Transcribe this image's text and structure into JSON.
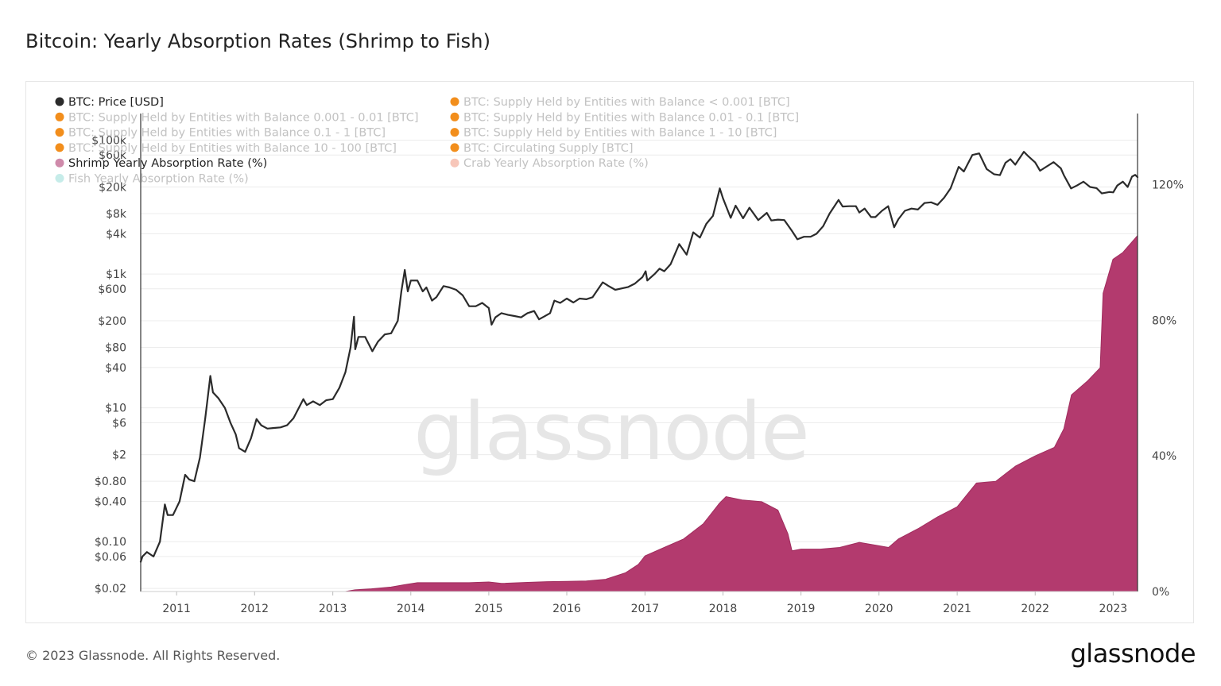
{
  "title": "Bitcoin: Yearly Absorption Rates (Shrimp to Fish)",
  "footer": {
    "copyright": "© 2023 Glassnode. All Rights Reserved.",
    "logo": "glassnode"
  },
  "watermark": "glassnode",
  "colors": {
    "price": "#2b2b2b",
    "shrimp": "#b33a6e",
    "supply": "#f28e1c",
    "crab": "#f7c6b9",
    "fish": "#c6ece9",
    "grid": "#ececec",
    "watermark": "#e6e6e6"
  },
  "legend": [
    {
      "label": "BTC: Price [USD]",
      "color": "#2b2b2b",
      "active": true
    },
    {
      "label": "BTC: Supply Held by Entities with Balance < 0.001 [BTC]",
      "color": "#f28e1c",
      "active": false
    },
    {
      "label": "BTC: Supply Held by Entities with Balance 0.001 - 0.01 [BTC]",
      "color": "#f28e1c",
      "active": false
    },
    {
      "label": "BTC: Supply Held by Entities with Balance 0.01 - 0.1 [BTC]",
      "color": "#f28e1c",
      "active": false
    },
    {
      "label": "BTC: Supply Held by Entities with Balance 0.1 - 1 [BTC]",
      "color": "#f28e1c",
      "active": false
    },
    {
      "label": "BTC: Supply Held by Entities with Balance 1 - 10 [BTC]",
      "color": "#f28e1c",
      "active": false
    },
    {
      "label": "BTC: Supply Held by Entities with Balance 10 - 100 [BTC]",
      "color": "#f28e1c",
      "active": false
    },
    {
      "label": "BTC: Circulating Supply [BTC]",
      "color": "#f28e1c",
      "active": false
    },
    {
      "label": "Shrimp Yearly Absorption Rate (%)",
      "color": "#cf8aaa",
      "active": true
    },
    {
      "label": "Crab Yearly Absorption Rate (%)",
      "color": "#f7c6b9",
      "active": false
    },
    {
      "label": "Fish Yearly Absorption Rate (%)",
      "color": "#c6ece9",
      "active": false
    }
  ],
  "chart_data": {
    "type": "line",
    "title": "Bitcoin: Yearly Absorption Rates (Shrimp to Fish)",
    "x_range": [
      "2010-07-17",
      "2023-04-25"
    ],
    "x_ticks": [
      "2011",
      "2012",
      "2013",
      "2014",
      "2015",
      "2016",
      "2017",
      "2018",
      "2019",
      "2020",
      "2021",
      "2022",
      "2023"
    ],
    "left_axis": {
      "scale": "log",
      "unit": "USD",
      "range": [
        0.018,
        250000
      ],
      "ticks": [
        {
          "label": "$100k",
          "value": 100000
        },
        {
          "label": "$60k",
          "value": 60000
        },
        {
          "label": "$20k",
          "value": 20000
        },
        {
          "label": "$8k",
          "value": 8000
        },
        {
          "label": "$4k",
          "value": 4000
        },
        {
          "label": "$1k",
          "value": 1000
        },
        {
          "label": "$600",
          "value": 600
        },
        {
          "label": "$200",
          "value": 200
        },
        {
          "label": "$80",
          "value": 80
        },
        {
          "label": "$40",
          "value": 40
        },
        {
          "label": "$10",
          "value": 10
        },
        {
          "label": "$6",
          "value": 6
        },
        {
          "label": "$2",
          "value": 2
        },
        {
          "label": "$0.80",
          "value": 0.8
        },
        {
          "label": "$0.40",
          "value": 0.4
        },
        {
          "label": "$0.10",
          "value": 0.1
        },
        {
          "label": "$0.06",
          "value": 0.06
        },
        {
          "label": "$0.02",
          "value": 0.02
        }
      ]
    },
    "right_axis": {
      "scale": "linear",
      "unit": "%",
      "range": [
        0,
        141
      ],
      "ticks": [
        {
          "label": "0%",
          "value": 0
        },
        {
          "label": "40%",
          "value": 40
        },
        {
          "label": "80%",
          "value": 80
        },
        {
          "label": "120%",
          "value": 120
        }
      ]
    },
    "grid": true,
    "legend_position": "top-left",
    "series": [
      {
        "name": "BTC: Price [USD]",
        "type": "line",
        "axis": "left",
        "color": "#2b2b2b",
        "points": [
          [
            "2010-07-17",
            0.05
          ],
          [
            "2010-07-25",
            0.06
          ],
          [
            "2010-08-15",
            0.07
          ],
          [
            "2010-09-15",
            0.06
          ],
          [
            "2010-10-15",
            0.1
          ],
          [
            "2010-11-07",
            0.36
          ],
          [
            "2010-11-20",
            0.25
          ],
          [
            "2010-12-15",
            0.25
          ],
          [
            "2011-01-15",
            0.4
          ],
          [
            "2011-02-10",
            1.0
          ],
          [
            "2011-03-01",
            0.85
          ],
          [
            "2011-03-25",
            0.8
          ],
          [
            "2011-04-20",
            1.8
          ],
          [
            "2011-05-15",
            7
          ],
          [
            "2011-06-08",
            30
          ],
          [
            "2011-06-20",
            17
          ],
          [
            "2011-07-15",
            14
          ],
          [
            "2011-08-15",
            10
          ],
          [
            "2011-09-10",
            6
          ],
          [
            "2011-10-05",
            4
          ],
          [
            "2011-10-20",
            2.5
          ],
          [
            "2011-11-18",
            2.2
          ],
          [
            "2011-12-15",
            3.5
          ],
          [
            "2012-01-10",
            6.8
          ],
          [
            "2012-02-01",
            5.5
          ],
          [
            "2012-03-01",
            4.9
          ],
          [
            "2012-04-01",
            5.0
          ],
          [
            "2012-05-01",
            5.1
          ],
          [
            "2012-06-01",
            5.5
          ],
          [
            "2012-07-01",
            7.0
          ],
          [
            "2012-08-16",
            13.5
          ],
          [
            "2012-09-01",
            11
          ],
          [
            "2012-10-01",
            12.5
          ],
          [
            "2012-11-01",
            11
          ],
          [
            "2012-12-01",
            13
          ],
          [
            "2013-01-01",
            13.5
          ],
          [
            "2013-02-01",
            20
          ],
          [
            "2013-03-01",
            34
          ],
          [
            "2013-03-25",
            80
          ],
          [
            "2013-04-10",
            230
          ],
          [
            "2013-04-16",
            75
          ],
          [
            "2013-05-01",
            115
          ],
          [
            "2013-06-01",
            115
          ],
          [
            "2013-07-05",
            70
          ],
          [
            "2013-08-01",
            98
          ],
          [
            "2013-09-01",
            125
          ],
          [
            "2013-10-01",
            130
          ],
          [
            "2013-11-01",
            200
          ],
          [
            "2013-11-18",
            550
          ],
          [
            "2013-12-04",
            1150
          ],
          [
            "2013-12-18",
            550
          ],
          [
            "2014-01-01",
            800
          ],
          [
            "2014-02-01",
            800
          ],
          [
            "2014-02-26",
            550
          ],
          [
            "2014-03-15",
            630
          ],
          [
            "2014-04-10",
            400
          ],
          [
            "2014-05-01",
            450
          ],
          [
            "2014-06-03",
            660
          ],
          [
            "2014-07-01",
            630
          ],
          [
            "2014-08-01",
            580
          ],
          [
            "2014-09-01",
            480
          ],
          [
            "2014-10-01",
            330
          ],
          [
            "2014-11-01",
            330
          ],
          [
            "2014-12-01",
            370
          ],
          [
            "2015-01-01",
            310
          ],
          [
            "2015-01-14",
            175
          ],
          [
            "2015-02-01",
            225
          ],
          [
            "2015-03-01",
            260
          ],
          [
            "2015-04-01",
            245
          ],
          [
            "2015-05-01",
            236
          ],
          [
            "2015-06-01",
            225
          ],
          [
            "2015-07-01",
            260
          ],
          [
            "2015-08-01",
            280
          ],
          [
            "2015-08-24",
            210
          ],
          [
            "2015-09-15",
            230
          ],
          [
            "2015-10-15",
            260
          ],
          [
            "2015-11-04",
            400
          ],
          [
            "2015-12-01",
            370
          ],
          [
            "2016-01-01",
            430
          ],
          [
            "2016-02-01",
            375
          ],
          [
            "2016-03-01",
            430
          ],
          [
            "2016-04-01",
            420
          ],
          [
            "2016-05-01",
            450
          ],
          [
            "2016-06-17",
            750
          ],
          [
            "2016-07-15",
            660
          ],
          [
            "2016-08-15",
            580
          ],
          [
            "2016-09-15",
            610
          ],
          [
            "2016-10-15",
            640
          ],
          [
            "2016-11-15",
            720
          ],
          [
            "2016-12-20",
            900
          ],
          [
            "2017-01-04",
            1100
          ],
          [
            "2017-01-12",
            800
          ],
          [
            "2017-02-15",
            1000
          ],
          [
            "2017-03-10",
            1200
          ],
          [
            "2017-04-01",
            1100
          ],
          [
            "2017-05-01",
            1400
          ],
          [
            "2017-06-10",
            2800
          ],
          [
            "2017-07-15",
            1950
          ],
          [
            "2017-08-15",
            4200
          ],
          [
            "2017-09-15",
            3500
          ],
          [
            "2017-10-15",
            5600
          ],
          [
            "2017-11-15",
            7400
          ],
          [
            "2017-12-17",
            19000
          ],
          [
            "2018-01-01",
            13500
          ],
          [
            "2018-02-06",
            6900
          ],
          [
            "2018-03-01",
            10500
          ],
          [
            "2018-04-05",
            6800
          ],
          [
            "2018-05-05",
            9800
          ],
          [
            "2018-06-15",
            6400
          ],
          [
            "2018-07-25",
            8200
          ],
          [
            "2018-08-15",
            6300
          ],
          [
            "2018-09-15",
            6500
          ],
          [
            "2018-10-15",
            6400
          ],
          [
            "2018-11-20",
            4400
          ],
          [
            "2018-12-15",
            3300
          ],
          [
            "2019-01-15",
            3600
          ],
          [
            "2019-02-15",
            3600
          ],
          [
            "2019-03-15",
            4000
          ],
          [
            "2019-04-15",
            5200
          ],
          [
            "2019-05-15",
            8000
          ],
          [
            "2019-06-26",
            12800
          ],
          [
            "2019-07-15",
            10200
          ],
          [
            "2019-08-15",
            10300
          ],
          [
            "2019-09-15",
            10300
          ],
          [
            "2019-10-01",
            8300
          ],
          [
            "2019-10-26",
            9500
          ],
          [
            "2019-11-25",
            7100
          ],
          [
            "2019-12-15",
            7100
          ],
          [
            "2020-01-15",
            8800
          ],
          [
            "2020-02-13",
            10300
          ],
          [
            "2020-03-12",
            5000
          ],
          [
            "2020-04-01",
            6600
          ],
          [
            "2020-05-01",
            8800
          ],
          [
            "2020-06-01",
            9500
          ],
          [
            "2020-07-01",
            9200
          ],
          [
            "2020-08-01",
            11500
          ],
          [
            "2020-09-01",
            11800
          ],
          [
            "2020-10-01",
            10800
          ],
          [
            "2020-11-01",
            13800
          ],
          [
            "2020-12-01",
            19000
          ],
          [
            "2021-01-08",
            40000
          ],
          [
            "2021-02-01",
            34000
          ],
          [
            "2021-03-13",
            60000
          ],
          [
            "2021-04-14",
            63500
          ],
          [
            "2021-05-19",
            37000
          ],
          [
            "2021-06-22",
            31000
          ],
          [
            "2021-07-20",
            30000
          ],
          [
            "2021-08-15",
            46000
          ],
          [
            "2021-09-07",
            52000
          ],
          [
            "2021-09-30",
            43000
          ],
          [
            "2021-11-09",
            67000
          ],
          [
            "2021-12-01",
            57000
          ],
          [
            "2022-01-01",
            46500
          ],
          [
            "2022-01-24",
            35000
          ],
          [
            "2022-03-28",
            47000
          ],
          [
            "2022-05-01",
            38000
          ],
          [
            "2022-05-15",
            30000
          ],
          [
            "2022-06-18",
            19000
          ],
          [
            "2022-07-15",
            21000
          ],
          [
            "2022-08-15",
            24000
          ],
          [
            "2022-09-15",
            20000
          ],
          [
            "2022-10-15",
            19200
          ],
          [
            "2022-11-09",
            16000
          ],
          [
            "2022-12-15",
            16800
          ],
          [
            "2023-01-01",
            16600
          ],
          [
            "2023-01-20",
            21000
          ],
          [
            "2023-02-15",
            24000
          ],
          [
            "2023-03-10",
            20000
          ],
          [
            "2023-03-30",
            28500
          ],
          [
            "2023-04-14",
            30300
          ],
          [
            "2023-04-25",
            28000
          ]
        ]
      },
      {
        "name": "Shrimp Yearly Absorption Rate (%)",
        "type": "area",
        "axis": "right",
        "color": "#b33a6e",
        "points": [
          [
            "2013-03-01",
            0.0
          ],
          [
            "2013-04-15",
            0.5
          ],
          [
            "2013-07-01",
            0.8
          ],
          [
            "2013-10-01",
            1.3
          ],
          [
            "2013-12-01",
            2.0
          ],
          [
            "2014-02-01",
            2.6
          ],
          [
            "2014-06-01",
            2.6
          ],
          [
            "2014-10-01",
            2.6
          ],
          [
            "2015-01-01",
            2.8
          ],
          [
            "2015-03-01",
            2.4
          ],
          [
            "2015-07-01",
            2.7
          ],
          [
            "2015-10-01",
            2.9
          ],
          [
            "2016-01-01",
            3.0
          ],
          [
            "2016-04-01",
            3.1
          ],
          [
            "2016-07-01",
            3.6
          ],
          [
            "2016-10-01",
            5.5
          ],
          [
            "2016-12-01",
            8.0
          ],
          [
            "2017-01-01",
            10.5
          ],
          [
            "2017-04-01",
            13.0
          ],
          [
            "2017-07-01",
            15.5
          ],
          [
            "2017-10-01",
            20.0
          ],
          [
            "2017-12-15",
            26.0
          ],
          [
            "2018-01-15",
            28.0
          ],
          [
            "2018-04-01",
            27.0
          ],
          [
            "2018-07-01",
            26.5
          ],
          [
            "2018-09-15",
            24.0
          ],
          [
            "2018-11-01",
            17.0
          ],
          [
            "2018-11-20",
            12.0
          ],
          [
            "2019-01-01",
            12.5
          ],
          [
            "2019-04-01",
            12.5
          ],
          [
            "2019-07-01",
            13.0
          ],
          [
            "2019-10-01",
            14.5
          ],
          [
            "2020-01-01",
            13.5
          ],
          [
            "2020-02-15",
            13.0
          ],
          [
            "2020-04-01",
            15.5
          ],
          [
            "2020-07-01",
            18.5
          ],
          [
            "2020-10-01",
            22.0
          ],
          [
            "2021-01-01",
            25.0
          ],
          [
            "2021-04-01",
            32.0
          ],
          [
            "2021-07-01",
            32.5
          ],
          [
            "2021-10-01",
            37.0
          ],
          [
            "2022-01-01",
            40.0
          ],
          [
            "2022-04-01",
            42.5
          ],
          [
            "2022-05-15",
            48.0
          ],
          [
            "2022-06-20",
            58.0
          ],
          [
            "2022-09-01",
            62.0
          ],
          [
            "2022-11-01",
            66.0
          ],
          [
            "2022-11-15",
            88.0
          ],
          [
            "2022-12-31",
            98.0
          ],
          [
            "2023-02-15",
            100.0
          ],
          [
            "2023-04-25",
            105.0
          ]
        ]
      }
    ]
  }
}
